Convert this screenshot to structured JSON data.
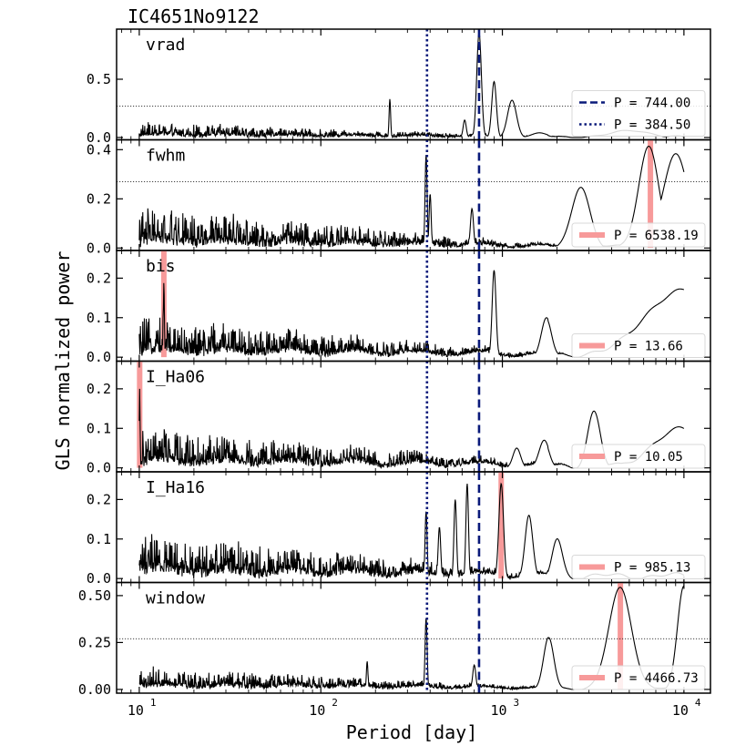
{
  "chart_data": {
    "type": "line",
    "title": "IC4651No9122",
    "xlabel": "Period [day]",
    "ylabel": "GLS normalized power",
    "xscale": "log",
    "xlim": [
      7.5,
      14000
    ],
    "xticks": [
      {
        "value": 10,
        "base": "10",
        "exp": "1"
      },
      {
        "value": 100,
        "base": "10",
        "exp": "2"
      },
      {
        "value": 1000,
        "base": "10",
        "exp": "3"
      },
      {
        "value": 10000,
        "base": "10",
        "exp": "4"
      }
    ],
    "main_lines": [
      {
        "period": 744.0,
        "style": "dashed",
        "label": "P = 744.00"
      },
      {
        "period": 384.5,
        "style": "dotted",
        "label": "P = 384.50"
      }
    ],
    "colors": {
      "main_line": "#0a1a7a",
      "highlight": "#f79a9a",
      "curve": "#000000"
    },
    "panels": [
      {
        "name": "vrad",
        "ylim": [
          -0.02,
          0.93
        ],
        "yticks": [
          {
            "value": 0.0,
            "label": "0.0"
          },
          {
            "value": 0.5,
            "label": "0.5"
          }
        ],
        "fap": 0.27,
        "noise": {
          "base": 0.03,
          "amp": 0.1
        },
        "peaks": [
          {
            "period": 744,
            "height": 0.9,
            "width": 0.018
          },
          {
            "period": 900,
            "height": 0.48,
            "width": 0.018
          },
          {
            "period": 1130,
            "height": 0.32,
            "width": 0.035
          },
          {
            "period": 240,
            "height": 0.33,
            "width": 0.006
          },
          {
            "period": 620,
            "height": 0.15,
            "width": 0.012
          },
          {
            "period": 1600,
            "height": 0.04,
            "width": 0.06
          },
          {
            "period": 5000,
            "height": 0.06,
            "width": 0.15
          }
        ],
        "legend": [
          {
            "style": "dashed",
            "text": "P = 744.00"
          },
          {
            "style": "dotted",
            "text": "P = 384.50"
          }
        ]
      },
      {
        "name": "fwhm",
        "ylim": [
          -0.01,
          0.44
        ],
        "yticks": [
          {
            "value": 0.0,
            "label": "0.0"
          },
          {
            "value": 0.2,
            "label": "0.2"
          },
          {
            "value": 0.4,
            "label": "0.4"
          }
        ],
        "fap": 0.27,
        "noise": {
          "base": 0.04,
          "amp": 0.13
        },
        "peaks": [
          {
            "period": 380,
            "height": 0.38,
            "width": 0.008
          },
          {
            "period": 400,
            "height": 0.22,
            "width": 0.008
          },
          {
            "period": 680,
            "height": 0.16,
            "width": 0.012
          },
          {
            "period": 2700,
            "height": 0.25,
            "width": 0.07
          },
          {
            "period": 6400,
            "height": 0.41,
            "width": 0.08
          },
          {
            "period": 9000,
            "height": 0.38,
            "width": 0.1
          }
        ],
        "highlight": 6538.19,
        "legend": [
          {
            "style": "highlight",
            "text": "P = 6538.19"
          }
        ]
      },
      {
        "name": "bis",
        "ylim": [
          -0.01,
          0.27
        ],
        "yticks": [
          {
            "value": 0.0,
            "label": "0.0"
          },
          {
            "value": 0.1,
            "label": "0.1"
          },
          {
            "value": 0.2,
            "label": "0.2"
          }
        ],
        "fap": 0.27,
        "noise": {
          "base": 0.02,
          "amp": 0.08
        },
        "peaks": [
          {
            "period": 13.66,
            "height": 0.19,
            "width": 0.004
          },
          {
            "period": 900,
            "height": 0.22,
            "width": 0.015
          },
          {
            "period": 1750,
            "height": 0.1,
            "width": 0.04
          },
          {
            "period": 10000,
            "height": 0.17,
            "width": 0.3
          }
        ],
        "highlight": 13.66,
        "legend": [
          {
            "style": "highlight",
            "text": "P = 13.66"
          }
        ]
      },
      {
        "name": "I_Ha06",
        "ylim": [
          -0.01,
          0.27
        ],
        "yticks": [
          {
            "value": 0.0,
            "label": "0.0"
          },
          {
            "value": 0.1,
            "label": "0.1"
          },
          {
            "value": 0.2,
            "label": "0.2"
          }
        ],
        "fap": 0.27,
        "noise": {
          "base": 0.02,
          "amp": 0.08
        },
        "peaks": [
          {
            "period": 10.05,
            "height": 0.2,
            "width": 0.003
          },
          {
            "period": 1200,
            "height": 0.05,
            "width": 0.03
          },
          {
            "period": 1700,
            "height": 0.07,
            "width": 0.04
          },
          {
            "period": 3200,
            "height": 0.14,
            "width": 0.05
          },
          {
            "period": 9500,
            "height": 0.1,
            "width": 0.2
          }
        ],
        "highlight": 10.05,
        "legend": [
          {
            "style": "highlight",
            "text": "P = 10.05"
          }
        ]
      },
      {
        "name": "I_Ha16",
        "ylim": [
          -0.01,
          0.27
        ],
        "yticks": [
          {
            "value": 0.0,
            "label": "0.0"
          },
          {
            "value": 0.1,
            "label": "0.1"
          },
          {
            "value": 0.2,
            "label": "0.2"
          }
        ],
        "fap": 0.27,
        "noise": {
          "base": 0.03,
          "amp": 0.09
        },
        "peaks": [
          {
            "period": 380,
            "height": 0.17,
            "width": 0.008
          },
          {
            "period": 450,
            "height": 0.13,
            "width": 0.01
          },
          {
            "period": 550,
            "height": 0.2,
            "width": 0.01
          },
          {
            "period": 640,
            "height": 0.24,
            "width": 0.01
          },
          {
            "period": 985,
            "height": 0.24,
            "width": 0.018
          },
          {
            "period": 1400,
            "height": 0.16,
            "width": 0.03
          },
          {
            "period": 2000,
            "height": 0.1,
            "width": 0.04
          }
        ],
        "highlight": 985.13,
        "legend": [
          {
            "style": "highlight",
            "text": "P = 985.13"
          }
        ]
      },
      {
        "name": "window",
        "ylim": [
          -0.02,
          0.57
        ],
        "yticks": [
          {
            "value": 0.0,
            "label": "0.00"
          },
          {
            "value": 0.25,
            "label": "0.25"
          },
          {
            "value": 0.5,
            "label": "0.50"
          }
        ],
        "fap": 0.27,
        "noise": {
          "base": 0.03,
          "amp": 0.09
        },
        "peaks": [
          {
            "period": 380,
            "height": 0.38,
            "width": 0.008
          },
          {
            "period": 180,
            "height": 0.15,
            "width": 0.006
          },
          {
            "period": 700,
            "height": 0.13,
            "width": 0.012
          },
          {
            "period": 1800,
            "height": 0.28,
            "width": 0.04
          },
          {
            "period": 4450,
            "height": 0.54,
            "width": 0.09
          },
          {
            "period": 10000,
            "height": 0.55,
            "width": 0.05
          }
        ],
        "highlight": 4466.73,
        "legend": [
          {
            "style": "highlight",
            "text": "P = 4466.73"
          }
        ]
      }
    ]
  }
}
